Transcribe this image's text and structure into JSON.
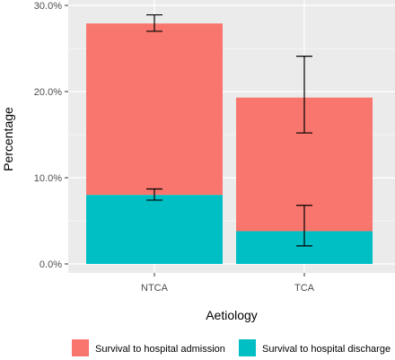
{
  "chart_data": {
    "type": "bar",
    "stacked": true,
    "categories": [
      "NTCA",
      "TCA"
    ],
    "xlabel": "Aetiology",
    "ylabel": "Percentage",
    "ylim": [
      0,
      30
    ],
    "y_ticks": [
      "0.0%",
      "10.0%",
      "20.0%",
      "30.0%"
    ],
    "y_tick_values": [
      0,
      10,
      20,
      30
    ],
    "grid": true,
    "legend_position": "bottom",
    "series": [
      {
        "name": "Survival to hospital admission",
        "color": "#F8766D",
        "total_values": [
          27.9,
          19.3
        ],
        "error_low": [
          27.0,
          15.2
        ],
        "error_high": [
          28.9,
          24.1
        ]
      },
      {
        "name": "Survival to hospital discharge",
        "color": "#00BFC4",
        "values": [
          8.0,
          3.8
        ],
        "error_low": [
          7.4,
          2.1
        ],
        "error_high": [
          8.7,
          6.8
        ]
      }
    ]
  },
  "theme": {
    "panel_bg": "#EBEBEB",
    "grid_major": "#FFFFFF",
    "error_bar": "#000000"
  }
}
